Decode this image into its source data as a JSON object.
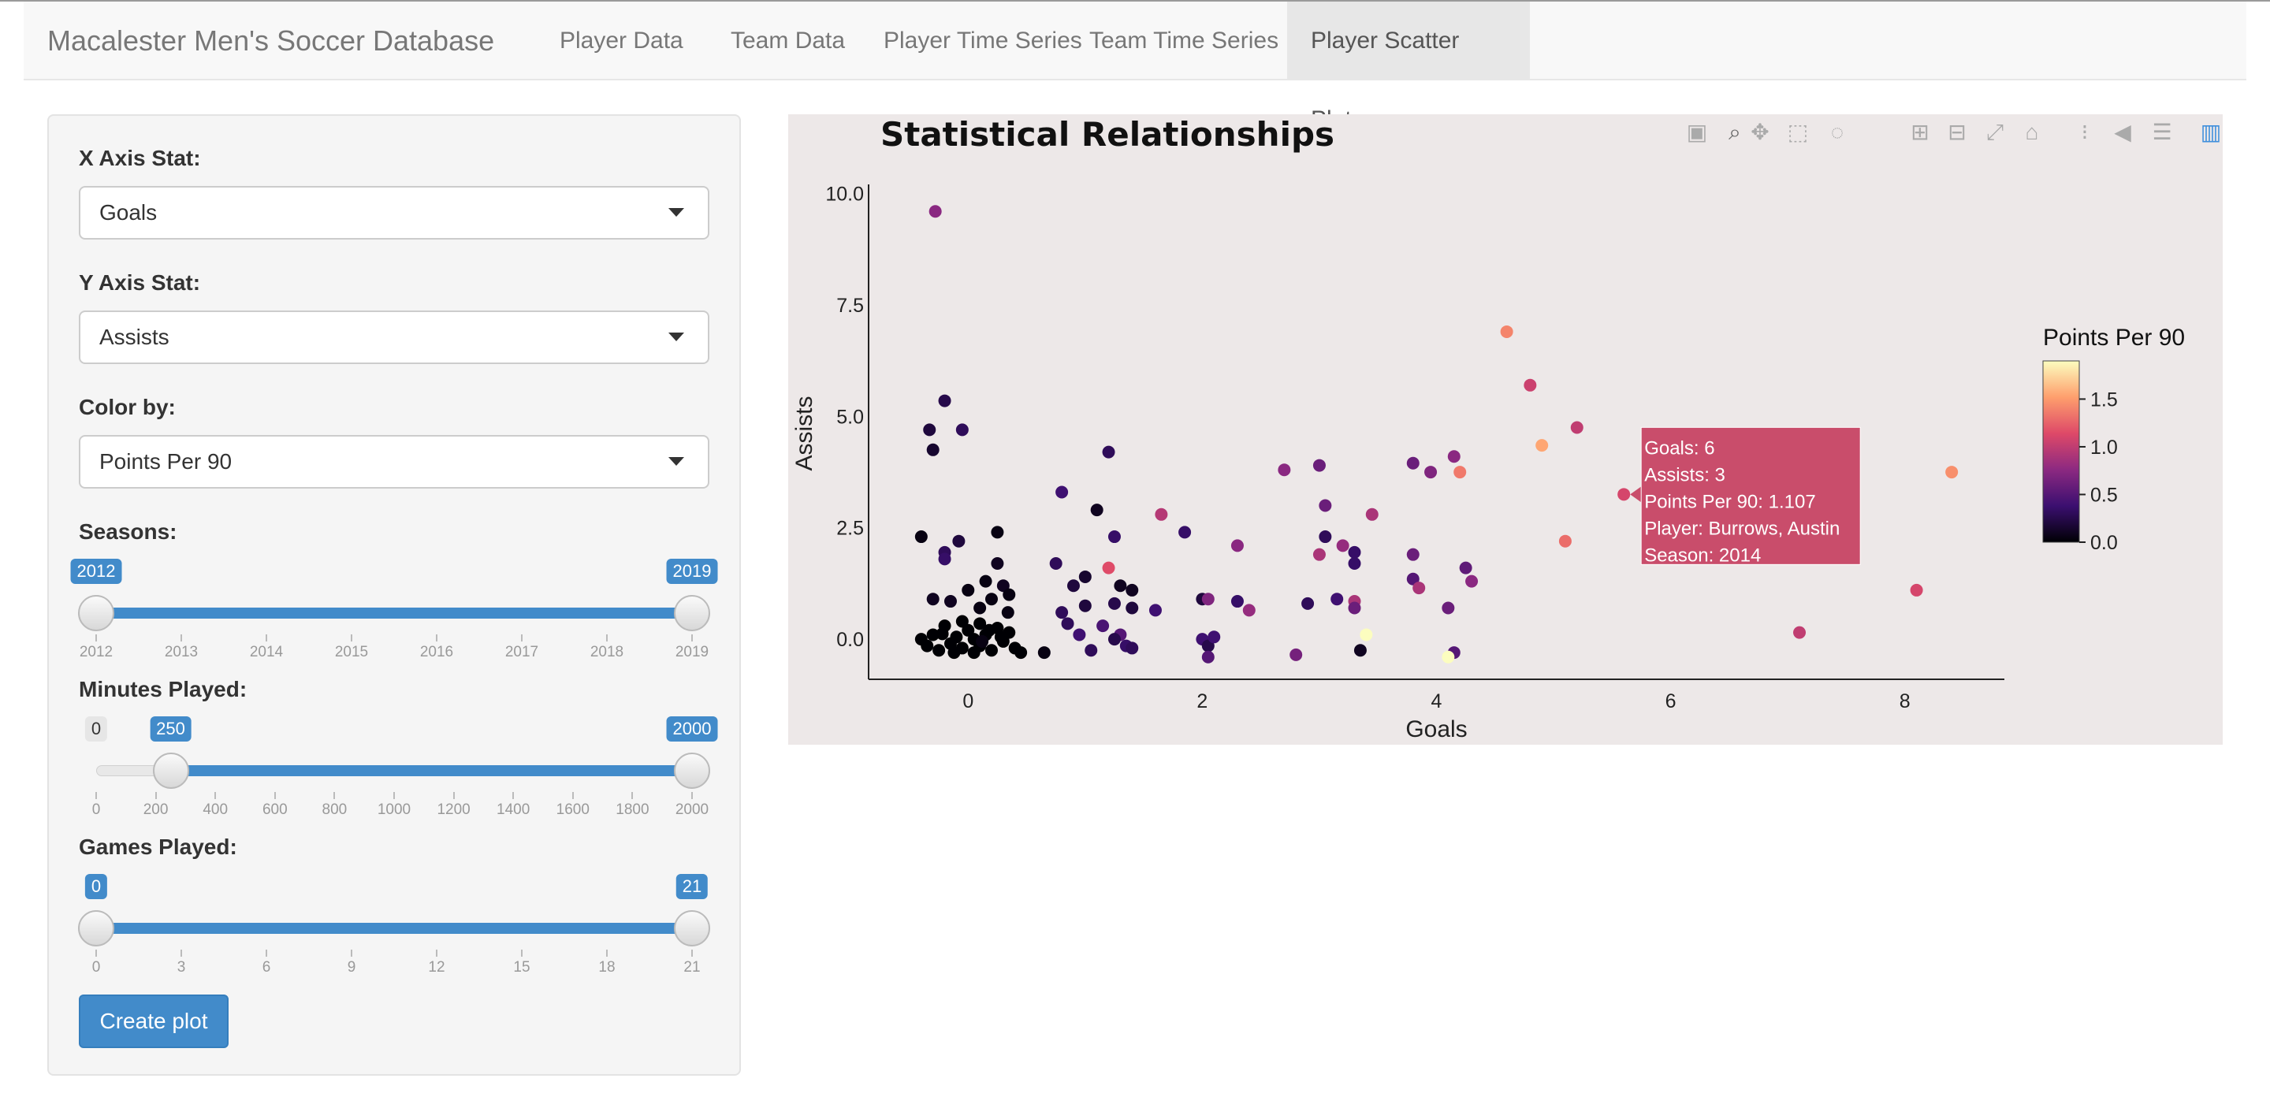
{
  "navbar": {
    "brand": "Macalester Men's Soccer Database",
    "tabs": [
      {
        "label": "Player Data",
        "active": false
      },
      {
        "label": "Team Data",
        "active": false
      },
      {
        "label": "Player Time Series",
        "active": false
      },
      {
        "label": "Team Time Series",
        "active": false
      },
      {
        "label": "Player Scatter Plots",
        "active": true
      }
    ]
  },
  "sidebar": {
    "x_label": "X Axis Stat:",
    "x_value": "Goals",
    "y_label": "Y Axis Stat:",
    "y_value": "Assists",
    "color_label": "Color by:",
    "color_value": "Points Per 90",
    "seasons": {
      "label": "Seasons:",
      "min": 2012,
      "max": 2019,
      "from": 2012,
      "to": 2019,
      "min_text": "2012",
      "from_text": "2012",
      "to_text": "2019",
      "ticks": [
        "2012",
        "2013",
        "2014",
        "2015",
        "2016",
        "2017",
        "2018",
        "2019"
      ]
    },
    "minutes": {
      "label": "Minutes Played:",
      "min": 0,
      "max": 2000,
      "from": 250,
      "to": 2000,
      "min_text": "0",
      "from_text": "250",
      "to_text": "2000",
      "ticks": [
        "0",
        "200",
        "400",
        "600",
        "800",
        "1000",
        "1200",
        "1400",
        "1600",
        "1800",
        "2000"
      ]
    },
    "games": {
      "label": "Games Played:",
      "min": 0,
      "max": 21,
      "from": 0,
      "to": 21,
      "min_text": "0",
      "from_text": "0",
      "to_text": "21",
      "ticks": [
        "0",
        "3",
        "6",
        "9",
        "12",
        "15",
        "18",
        "21"
      ]
    },
    "button_label": "Create plot"
  },
  "modebar": [
    "camera-icon",
    "zoom-icon",
    "pan-icon",
    "box-select-icon",
    "lasso-icon",
    "zoom-in-icon",
    "zoom-out-icon",
    "autoscale-icon",
    "reset-axes-icon",
    "spike-lines-icon",
    "hover-closest-icon",
    "hover-compare-icon",
    "plotly-logo-icon"
  ],
  "chart_data": {
    "type": "scatter",
    "title": "Statistical Relationships",
    "xlabel": "Goals",
    "ylabel": "Assists",
    "xlim": [
      -0.85,
      8.85
    ],
    "ylim": [
      -0.9,
      10.1
    ],
    "xticks": [
      0,
      2,
      4,
      6,
      8
    ],
    "xtick_labels": [
      "0",
      "2",
      "4",
      "6",
      "8"
    ],
    "yticks": [
      0,
      2.5,
      5,
      7.5,
      10
    ],
    "ytick_labels": [
      "0.0",
      "2.5",
      "5.0",
      "7.5",
      "10.0"
    ],
    "colorbar": {
      "title": "Points Per 90",
      "range": [
        0,
        1.9
      ],
      "ticks": [
        0,
        0.5,
        1,
        1.5
      ],
      "tick_labels": [
        "0.0",
        "0.5",
        "1.0",
        "1.5"
      ],
      "colors": [
        "#000004",
        "#3b0f70",
        "#8c2981",
        "#de4968",
        "#fe9f6d",
        "#fcfdbf"
      ]
    },
    "points": [
      [
        -0.28,
        9.6,
        0.75
      ],
      [
        -0.4,
        2.3,
        0.05
      ],
      [
        -0.33,
        4.7,
        0.2
      ],
      [
        -0.3,
        4.25,
        0.15
      ],
      [
        -0.2,
        5.35,
        0.25
      ],
      [
        -0.05,
        4.7,
        0.3
      ],
      [
        -0.2,
        1.95,
        0.3
      ],
      [
        -0.2,
        1.8,
        0.35
      ],
      [
        -0.08,
        2.2,
        0.2
      ],
      [
        0.25,
        2.4,
        0.05
      ],
      [
        0.25,
        1.7,
        0.1
      ],
      [
        0.3,
        1.2,
        0.1
      ],
      [
        0.15,
        1.3,
        0.05
      ],
      [
        -0.3,
        0.9,
        0.1
      ],
      [
        -0.15,
        0.85,
        0.1
      ],
      [
        0.0,
        1.1,
        0.05
      ],
      [
        0.2,
        0.9,
        0.05
      ],
      [
        0.35,
        1.0,
        0.05
      ],
      [
        0.1,
        0.7,
        0.05
      ],
      [
        0.34,
        0.6,
        0.05
      ],
      [
        -0.4,
        0.0,
        0
      ],
      [
        -0.35,
        -0.15,
        0
      ],
      [
        -0.3,
        0.1,
        0
      ],
      [
        -0.25,
        -0.25,
        0
      ],
      [
        -0.2,
        0.3,
        0
      ],
      [
        -0.15,
        -0.1,
        0
      ],
      [
        -0.1,
        0.05,
        0
      ],
      [
        -0.05,
        -0.2,
        0
      ],
      [
        0.0,
        0.2,
        0
      ],
      [
        0.05,
        0.0,
        0
      ],
      [
        0.1,
        -0.15,
        0
      ],
      [
        0.1,
        0.35,
        0
      ],
      [
        0.15,
        0.1,
        0
      ],
      [
        0.2,
        -0.25,
        0
      ],
      [
        0.25,
        0.25,
        0
      ],
      [
        0.3,
        -0.05,
        0
      ],
      [
        0.35,
        0.15,
        0
      ],
      [
        0.4,
        -0.2,
        0
      ],
      [
        -0.05,
        0.4,
        0
      ],
      [
        0.05,
        -0.3,
        0
      ],
      [
        0.18,
        0.2,
        0
      ],
      [
        -0.22,
        0.12,
        0
      ],
      [
        0.45,
        -0.3,
        0
      ],
      [
        0.12,
        -0.05,
        0.05
      ],
      [
        -0.12,
        -0.3,
        0
      ],
      [
        0.28,
        0.05,
        0
      ],
      [
        0.65,
        -0.3,
        0.05
      ],
      [
        0.8,
        3.3,
        0.4
      ],
      [
        0.75,
        1.7,
        0.3
      ],
      [
        0.8,
        0.6,
        0.3
      ],
      [
        0.9,
        1.2,
        0.2
      ],
      [
        1.0,
        0.75,
        0.2
      ],
      [
        0.85,
        0.35,
        0.3
      ],
      [
        0.95,
        0.1,
        0.4
      ],
      [
        1.05,
        -0.25,
        0.3
      ],
      [
        1.1,
        2.9,
        0.1
      ],
      [
        1.2,
        4.2,
        0.3
      ],
      [
        1.25,
        2.3,
        0.35
      ],
      [
        1.3,
        1.2,
        0.1
      ],
      [
        1.25,
        0.8,
        0.25
      ],
      [
        1.15,
        0.3,
        0.45
      ],
      [
        1.3,
        0.1,
        0.5
      ],
      [
        1.35,
        -0.15,
        0.35
      ],
      [
        1.4,
        1.1,
        0.1
      ],
      [
        1.4,
        0.7,
        0.2
      ],
      [
        1.4,
        -0.2,
        0.3
      ],
      [
        1.2,
        1.6,
        1.15
      ],
      [
        1.25,
        0.0,
        0.25
      ],
      [
        1.0,
        1.4,
        0.15
      ],
      [
        1.65,
        2.8,
        0.95
      ],
      [
        1.6,
        0.65,
        0.4
      ],
      [
        1.85,
        2.4,
        0.35
      ],
      [
        2.0,
        0.9,
        0.2
      ],
      [
        2.05,
        0.9,
        0.7
      ],
      [
        2.0,
        0.0,
        0.4
      ],
      [
        2.05,
        -0.15,
        0.25
      ],
      [
        2.1,
        0.05,
        0.4
      ],
      [
        2.05,
        -0.4,
        0.5
      ],
      [
        2.3,
        2.1,
        0.75
      ],
      [
        2.3,
        0.85,
        0.35
      ],
      [
        2.4,
        0.65,
        0.8
      ],
      [
        2.7,
        3.8,
        0.75
      ],
      [
        2.8,
        -0.35,
        0.65
      ],
      [
        2.9,
        0.8,
        0.3
      ],
      [
        3.0,
        3.9,
        0.6
      ],
      [
        3.0,
        1.9,
        0.9
      ],
      [
        3.05,
        2.3,
        0.3
      ],
      [
        3.05,
        3.0,
        0.6
      ],
      [
        3.15,
        0.9,
        0.4
      ],
      [
        3.2,
        2.1,
        0.8
      ],
      [
        3.3,
        1.95,
        0.35
      ],
      [
        3.3,
        1.7,
        0.35
      ],
      [
        3.3,
        0.85,
        0.9
      ],
      [
        3.35,
        -0.25,
        0.1
      ],
      [
        3.4,
        0.1,
        1.9
      ],
      [
        3.45,
        2.8,
        0.9
      ],
      [
        3.3,
        0.7,
        0.6
      ],
      [
        3.8,
        3.95,
        0.6
      ],
      [
        3.8,
        1.9,
        0.6
      ],
      [
        3.8,
        1.35,
        0.5
      ],
      [
        3.85,
        1.15,
        0.9
      ],
      [
        3.95,
        3.75,
        0.7
      ],
      [
        4.15,
        4.1,
        0.75
      ],
      [
        4.2,
        3.75,
        1.35
      ],
      [
        4.1,
        0.7,
        0.6
      ],
      [
        4.15,
        -0.3,
        0.5
      ],
      [
        4.25,
        1.6,
        0.55
      ],
      [
        4.3,
        1.3,
        0.75
      ],
      [
        4.1,
        -0.4,
        1.9
      ],
      [
        4.6,
        6.9,
        1.4
      ],
      [
        4.8,
        5.7,
        1.05
      ],
      [
        4.9,
        4.35,
        1.55
      ],
      [
        5.1,
        2.2,
        1.3
      ],
      [
        5.2,
        4.75,
        1.0
      ],
      [
        5.6,
        3.25,
        1.1
      ],
      [
        7.1,
        0.15,
        1.0
      ],
      [
        8.1,
        1.1,
        1.1
      ],
      [
        8.4,
        3.75,
        1.45
      ]
    ],
    "tooltip": {
      "x": 5.6,
      "y": 3.25,
      "lines": [
        "Goals: 6",
        "Assists:  3",
        "Points Per 90: 1.107",
        "Player: Burrows, Austin",
        "Season: 2014"
      ],
      "color": "#c94d6b"
    }
  }
}
